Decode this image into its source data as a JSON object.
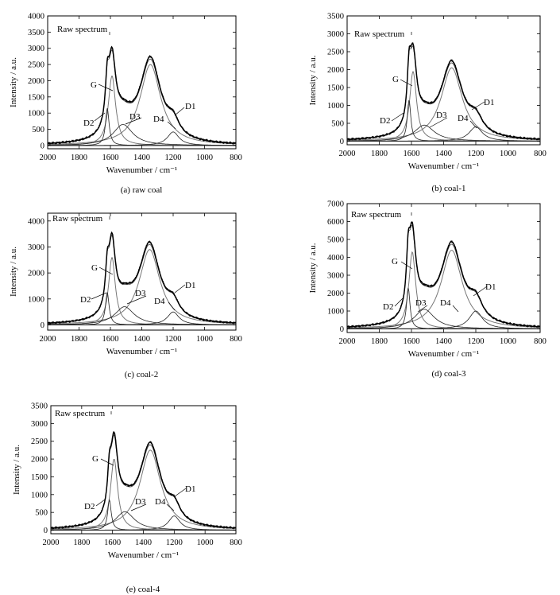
{
  "chart_data": [
    {
      "type": "line",
      "caption": "(a) raw coal",
      "xlabel": "Wavenumber / cm⁻¹",
      "ylabel": "Intensity / a.u.",
      "xlim": [
        2000,
        800
      ],
      "ylim": [
        -100,
        4000
      ],
      "xticks": [
        2000,
        1800,
        1600,
        1400,
        1200,
        1000,
        800
      ],
      "yticks": [
        0,
        500,
        1000,
        1500,
        2000,
        2500,
        3000,
        3500,
        4000
      ],
      "peaks": {
        "G": {
          "center": 1590,
          "height": 2150,
          "width": 28
        },
        "D1": {
          "center": 1345,
          "height": 2500,
          "width": 80
        },
        "D2": {
          "center": 1620,
          "height": 1150,
          "width": 14
        },
        "D3": {
          "center": 1520,
          "height": 650,
          "width": 75
        },
        "D4": {
          "center": 1200,
          "height": 420,
          "width": 45
        }
      },
      "annotations": {
        "raw": "Raw spectrum",
        "G": "G",
        "D1": "D1",
        "D2": "D2",
        "D3": "D3",
        "D4": "D4"
      }
    },
    {
      "type": "line",
      "caption": "(b) coal-1",
      "xlabel": "Wavenumber / cm⁻¹",
      "ylabel": "Intensity / a.u.",
      "xlim": [
        2000,
        800
      ],
      "ylim": [
        -100,
        3500
      ],
      "xticks": [
        2000,
        1800,
        1600,
        1400,
        1200,
        1000,
        800
      ],
      "yticks": [
        0,
        500,
        1000,
        1500,
        2000,
        2500,
        3000,
        3500
      ],
      "peaks": {
        "G": {
          "center": 1590,
          "height": 1950,
          "width": 26
        },
        "D1": {
          "center": 1350,
          "height": 2050,
          "width": 80
        },
        "D2": {
          "center": 1615,
          "height": 1150,
          "width": 13
        },
        "D3": {
          "center": 1520,
          "height": 450,
          "width": 75
        },
        "D4": {
          "center": 1200,
          "height": 400,
          "width": 50
        }
      },
      "annotations": {
        "raw": "Raw spectrum",
        "G": "G",
        "D1": "D1",
        "D2": "D2",
        "D3": "D3",
        "D4": "D4"
      }
    },
    {
      "type": "line",
      "caption": "(c) coal-2",
      "xlabel": "Wavenumber / cm⁻¹",
      "ylabel": "Intensity / a.u.",
      "xlim": [
        2000,
        800
      ],
      "ylim": [
        -200,
        4300
      ],
      "xticks": [
        2000,
        1800,
        1600,
        1400,
        1200,
        1000,
        800
      ],
      "yticks": [
        0,
        1000,
        2000,
        3000,
        4000
      ],
      "peaks": {
        "G": {
          "center": 1590,
          "height": 2600,
          "width": 26
        },
        "D1": {
          "center": 1350,
          "height": 2900,
          "width": 80
        },
        "D2": {
          "center": 1620,
          "height": 1250,
          "width": 14
        },
        "D3": {
          "center": 1510,
          "height": 700,
          "width": 75
        },
        "D4": {
          "center": 1200,
          "height": 500,
          "width": 45
        }
      },
      "annotations": {
        "raw": "Raw spectrum",
        "G": "G",
        "D1": "D1",
        "D2": "D2",
        "D3": "D3",
        "D4": "D4"
      }
    },
    {
      "type": "line",
      "caption": "(d) coal-3",
      "xlabel": "Wavenumber / cm⁻¹",
      "ylabel": "Intensity / a.u.",
      "xlim": [
        2000,
        800
      ],
      "ylim": [
        -200,
        7000
      ],
      "xticks": [
        2000,
        1800,
        1600,
        1400,
        1200,
        1000,
        800
      ],
      "yticks": [
        0,
        1000,
        2000,
        3000,
        4000,
        5000,
        6000,
        7000
      ],
      "peaks": {
        "G": {
          "center": 1595,
          "height": 4300,
          "width": 26
        },
        "D1": {
          "center": 1350,
          "height": 4400,
          "width": 80
        },
        "D2": {
          "center": 1620,
          "height": 2300,
          "width": 13
        },
        "D3": {
          "center": 1520,
          "height": 1100,
          "width": 75
        },
        "D4": {
          "center": 1200,
          "height": 1000,
          "width": 50
        }
      },
      "annotations": {
        "raw": "Raw spectrum",
        "G": "G",
        "D1": "D1",
        "D2": "D2",
        "D3": "D3",
        "D4": "D4"
      }
    },
    {
      "type": "line",
      "caption": "(e) coal-4",
      "xlabel": "Wavenumber / cm⁻¹",
      "ylabel": "Intensity / a.u.",
      "xlim": [
        2000,
        800
      ],
      "ylim": [
        -100,
        3500
      ],
      "xticks": [
        2000,
        1800,
        1600,
        1400,
        1200,
        1000,
        800
      ],
      "yticks": [
        0,
        500,
        1000,
        1500,
        2000,
        2500,
        3000,
        3500
      ],
      "peaks": {
        "G": {
          "center": 1590,
          "height": 2000,
          "width": 28
        },
        "D1": {
          "center": 1355,
          "height": 2250,
          "width": 82
        },
        "D2": {
          "center": 1620,
          "height": 850,
          "width": 14
        },
        "D3": {
          "center": 1520,
          "height": 520,
          "width": 75
        },
        "D4": {
          "center": 1200,
          "height": 400,
          "width": 45
        }
      },
      "annotations": {
        "raw": "Raw spectrum",
        "G": "G",
        "D1": "D1",
        "D2": "D2",
        "D3": "D3",
        "D4": "D4"
      }
    }
  ]
}
